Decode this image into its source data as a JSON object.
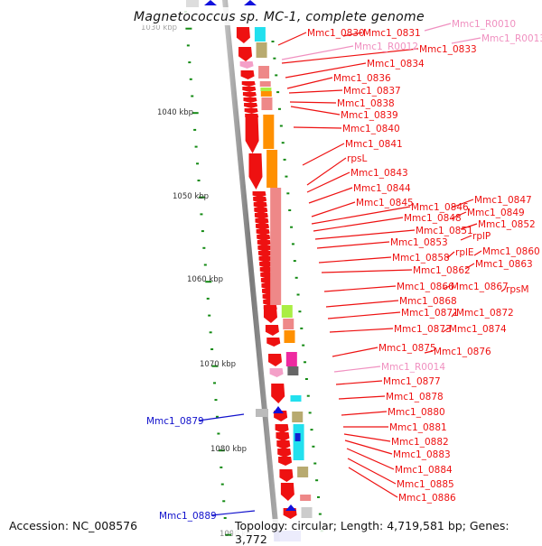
{
  "title": "Magnetococcus sp. MC-1, complete genome",
  "accession_text": "Accession: NC_008576",
  "topology_text": "Topology: circular; Length: 4,719,581 bp; Genes: 3,772",
  "colors": {
    "backbone": "#8a8a8a",
    "forward_label": "#ee1111",
    "reverse_label": "#1111cc",
    "rna_label": "#f090c0",
    "tick": "#138a13"
  },
  "ticks": [
    {
      "label": "1030 kbp",
      "faded": true
    },
    {
      "label": "1040 kbp",
      "faded": false
    },
    {
      "label": "1050 kbp",
      "faded": false
    },
    {
      "label": "1060 kbp",
      "faded": false
    },
    {
      "label": "1070 kbp",
      "faded": false
    },
    {
      "label": "1080 kbp",
      "faded": false
    },
    {
      "label": "1090 kbp",
      "faded": true
    }
  ],
  "forward_genes": [
    {
      "name": "Mmc1_0830",
      "type": "cds"
    },
    {
      "name": "Mmc1_0831",
      "type": "cds"
    },
    {
      "name": "Mmc1_R0010",
      "type": "rna"
    },
    {
      "name": "Mmc1_R0012",
      "type": "rna"
    },
    {
      "name": "Mmc1_R0013",
      "type": "rna"
    },
    {
      "name": "Mmc1_0833",
      "type": "cds"
    },
    {
      "name": "Mmc1_0834",
      "type": "cds"
    },
    {
      "name": "Mmc1_0836",
      "type": "cds"
    },
    {
      "name": "Mmc1_0837",
      "type": "cds"
    },
    {
      "name": "Mmc1_0838",
      "type": "cds"
    },
    {
      "name": "Mmc1_0839",
      "type": "cds"
    },
    {
      "name": "Mmc1_0840",
      "type": "cds"
    },
    {
      "name": "Mmc1_0841",
      "type": "cds"
    },
    {
      "name": "rpsL",
      "type": "cds"
    },
    {
      "name": "Mmc1_0843",
      "type": "cds"
    },
    {
      "name": "Mmc1_0844",
      "type": "cds"
    },
    {
      "name": "Mmc1_0845",
      "type": "cds"
    },
    {
      "name": "Mmc1_0846",
      "type": "cds"
    },
    {
      "name": "Mmc1_0847",
      "type": "cds"
    },
    {
      "name": "Mmc1_0848",
      "type": "cds"
    },
    {
      "name": "Mmc1_0849",
      "type": "cds"
    },
    {
      "name": "Mmc1_0851",
      "type": "cds"
    },
    {
      "name": "Mmc1_0852",
      "type": "cds"
    },
    {
      "name": "rplP",
      "type": "cds"
    },
    {
      "name": "Mmc1_0853",
      "type": "cds"
    },
    {
      "name": "Mmc1_0858",
      "type": "cds"
    },
    {
      "name": "rplE",
      "type": "cds"
    },
    {
      "name": "Mmc1_0860",
      "type": "cds"
    },
    {
      "name": "Mmc1_0862",
      "type": "cds"
    },
    {
      "name": "Mmc1_0863",
      "type": "cds"
    },
    {
      "name": "Mmc1_0866",
      "type": "cds"
    },
    {
      "name": "Mmc1_0867",
      "type": "cds"
    },
    {
      "name": "rpsM",
      "type": "cds"
    },
    {
      "name": "Mmc1_0868",
      "type": "cds"
    },
    {
      "name": "Mmc1_0871",
      "type": "cds"
    },
    {
      "name": "Mmc1_0872",
      "type": "cds"
    },
    {
      "name": "Mmc1_0873",
      "type": "cds"
    },
    {
      "name": "Mmc1_0874",
      "type": "cds"
    },
    {
      "name": "Mmc1_0875",
      "type": "cds"
    },
    {
      "name": "Mmc1_0876",
      "type": "cds"
    },
    {
      "name": "Mmc1_R0014",
      "type": "rna"
    },
    {
      "name": "Mmc1_0877",
      "type": "cds"
    },
    {
      "name": "Mmc1_0878",
      "type": "cds"
    },
    {
      "name": "Mmc1_0880",
      "type": "cds"
    },
    {
      "name": "Mmc1_0881",
      "type": "cds"
    },
    {
      "name": "Mmc1_0882",
      "type": "cds"
    },
    {
      "name": "Mmc1_0883",
      "type": "cds"
    },
    {
      "name": "Mmc1_0884",
      "type": "cds"
    },
    {
      "name": "Mmc1_0885",
      "type": "cds"
    },
    {
      "name": "Mmc1_0886",
      "type": "cds"
    }
  ],
  "reverse_genes": [
    {
      "name": "Mmc1_0879"
    },
    {
      "name": "Mmc1_0889"
    }
  ]
}
